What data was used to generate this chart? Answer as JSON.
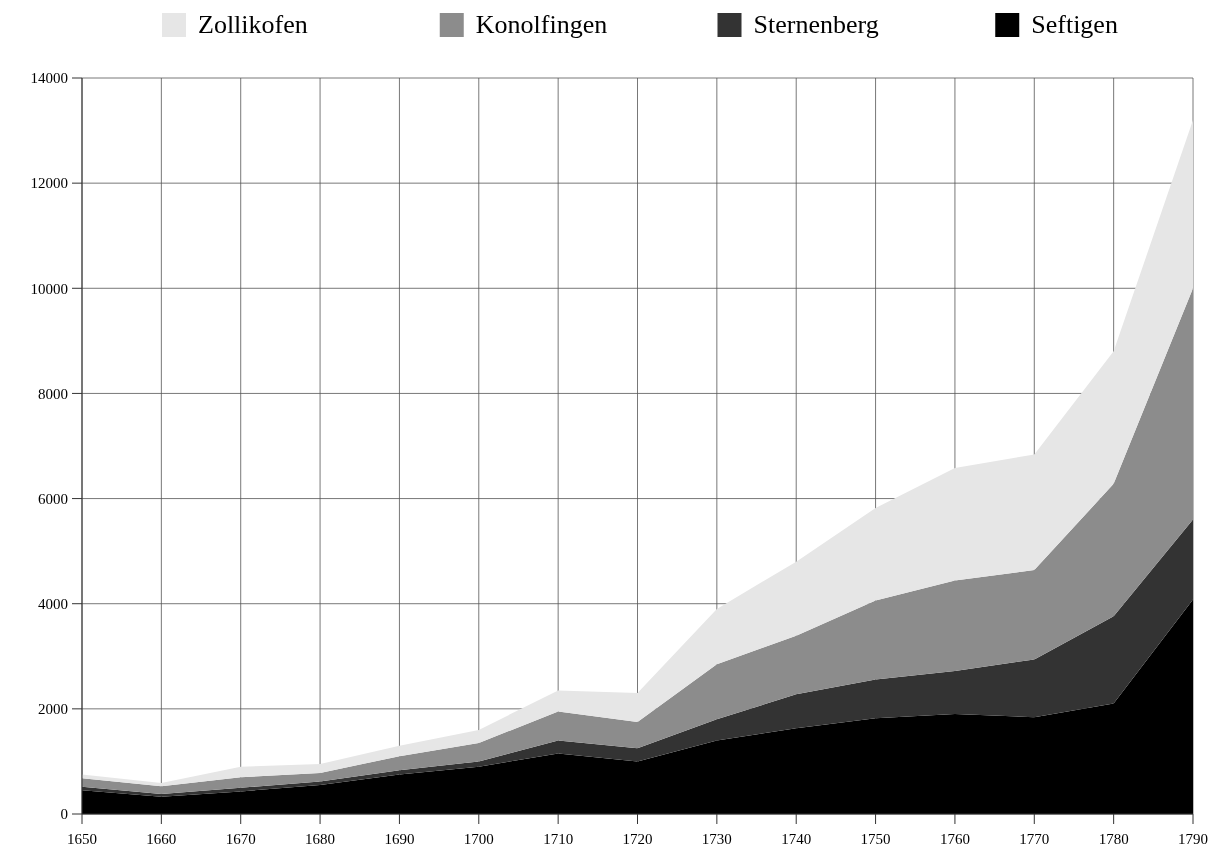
{
  "chart_data": {
    "type": "area",
    "stacked": true,
    "x": [
      1650,
      1660,
      1670,
      1680,
      1690,
      1700,
      1710,
      1720,
      1730,
      1740,
      1750,
      1760,
      1770,
      1780,
      1790
    ],
    "series": [
      {
        "name": "Seftigen",
        "color": "#000000",
        "values": [
          450,
          330,
          430,
          550,
          750,
          900,
          1150,
          1000,
          1400,
          1630,
          1820,
          1900,
          1840,
          2100,
          4080
        ]
      },
      {
        "name": "Sternenberg",
        "color": "#333333",
        "values": [
          70,
          50,
          70,
          70,
          80,
          100,
          250,
          250,
          400,
          650,
          740,
          820,
          1100,
          1660,
          1520
        ]
      },
      {
        "name": "Konolfingen",
        "color": "#8c8c8c",
        "values": [
          160,
          150,
          200,
          160,
          270,
          350,
          550,
          500,
          1050,
          1110,
          1500,
          1720,
          1700,
          2520,
          4400
        ]
      },
      {
        "name": "Zollikofen",
        "color": "#e6e6e6",
        "values": [
          70,
          60,
          200,
          170,
          200,
          250,
          400,
          550,
          1050,
          1410,
          1760,
          2140,
          2200,
          2520,
          3200
        ]
      }
    ],
    "xlim": [
      1650,
      1790
    ],
    "xticks": [
      1650,
      1660,
      1670,
      1680,
      1690,
      1700,
      1710,
      1720,
      1730,
      1740,
      1750,
      1760,
      1770,
      1780,
      1790
    ],
    "ylim": [
      0,
      14000
    ],
    "yticks": [
      0,
      2000,
      4000,
      6000,
      8000,
      10000,
      12000,
      14000
    ],
    "grid": true,
    "legend": "top"
  }
}
